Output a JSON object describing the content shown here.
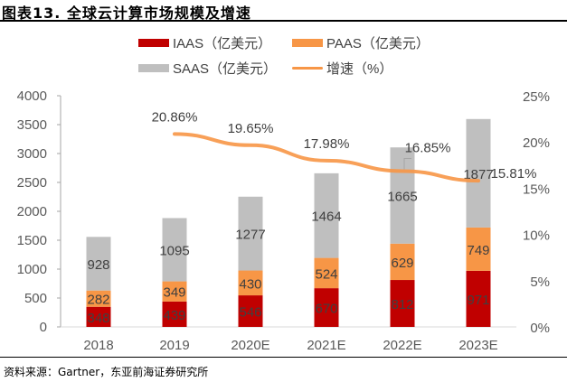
{
  "header": {
    "title": "图表13.  全球云计算市场规模及增速"
  },
  "footer": {
    "source": "资料来源：Gartner，东亚前海证券研究所"
  },
  "chart_data": {
    "type": "bar",
    "stacked": true,
    "title": "全球云计算市场规模及增速",
    "categories": [
      "2018",
      "2019",
      "2020E",
      "2021E",
      "2022E",
      "2023E"
    ],
    "series": [
      {
        "name": "IAAS（亿美元）",
        "kind": "bar",
        "axis": "left",
        "color": "#C00000",
        "values": [
          348,
          439,
          546,
          670,
          812,
          971
        ]
      },
      {
        "name": "PAAS（亿美元）",
        "kind": "bar",
        "axis": "left",
        "color": "#F79646",
        "values": [
          282,
          349,
          430,
          524,
          629,
          749
        ]
      },
      {
        "name": "SAAS（亿美元）",
        "kind": "bar",
        "axis": "left",
        "color": "#BFBFBF",
        "values": [
          928,
          1095,
          1277,
          1464,
          1665,
          1877
        ]
      },
      {
        "name": "增速（%）",
        "kind": "line",
        "axis": "right",
        "color": "#F79646",
        "values": [
          null,
          20.86,
          19.65,
          17.98,
          16.85,
          15.81
        ],
        "labels": [
          "",
          "20.86%",
          "19.65%",
          "17.98%",
          "16.85%",
          "15.81%"
        ]
      }
    ],
    "yleft": {
      "ylim": [
        0,
        4000
      ],
      "ticks": [
        0,
        500,
        1000,
        1500,
        2000,
        2500,
        3000,
        3500,
        4000
      ]
    },
    "yright": {
      "ylim": [
        0,
        25
      ],
      "ticks": [
        "0%",
        "5%",
        "10%",
        "15%",
        "20%",
        "25%"
      ]
    },
    "xlabel": "",
    "ylabel": "",
    "grid": false,
    "legend_position": "top"
  }
}
